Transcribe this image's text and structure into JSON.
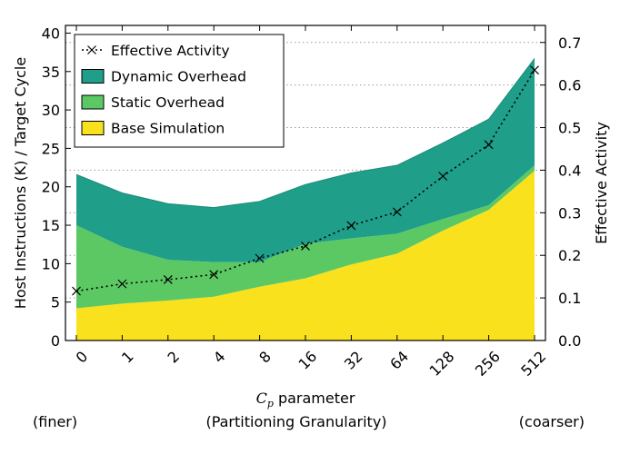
{
  "chart_data": {
    "type": "area",
    "categories": [
      "0",
      "1",
      "2",
      "4",
      "8",
      "16",
      "32",
      "64",
      "128",
      "256",
      "512"
    ],
    "series": [
      {
        "name": "Base Simulation",
        "kind": "stacked-area",
        "color": "#f9e11e",
        "values": [
          4.2,
          4.8,
          5.2,
          5.7,
          7.0,
          8.1,
          9.9,
          11.3,
          14.3,
          17.0,
          22.1
        ]
      },
      {
        "name": "Static Overhead",
        "kind": "stacked-area",
        "color": "#5cc863",
        "values": [
          10.8,
          7.4,
          5.3,
          4.5,
          3.2,
          4.5,
          3.4,
          2.6,
          1.5,
          0.6,
          0.7
        ]
      },
      {
        "name": "Dynamic Overhead",
        "kind": "stacked-area",
        "color": "#1f9e89",
        "values": [
          6.6,
          7.0,
          7.3,
          7.1,
          7.9,
          7.7,
          8.5,
          8.9,
          9.9,
          11.2,
          13.9
        ]
      },
      {
        "name": "Effective Activity",
        "kind": "line",
        "axis": "right",
        "color": "#000000",
        "values": [
          0.116,
          0.133,
          0.143,
          0.155,
          0.193,
          0.222,
          0.27,
          0.302,
          0.386,
          0.46,
          0.635
        ]
      }
    ],
    "legend_order": [
      "Effective Activity",
      "Dynamic Overhead",
      "Static Overhead",
      "Base Simulation"
    ],
    "legend_position": "top-left",
    "ylabel": "Host Instructions (K) / Target Cycle",
    "ylabel_right": "Effective Activity",
    "xlabel_math": "C",
    "xlabel_sub": "p",
    "xlabel_rest": " parameter",
    "ylim": [
      0,
      41
    ],
    "yticks": [
      "0",
      "5",
      "10",
      "15",
      "20",
      "25",
      "30",
      "35",
      "40"
    ],
    "ylim_right": [
      0,
      0.74
    ],
    "yticks_right": [
      "0.0",
      "0.1",
      "0.2",
      "0.3",
      "0.4",
      "0.5",
      "0.6",
      "0.7"
    ],
    "grid": "horizontal-dotted-right-axis",
    "caption": {
      "left": "(finer)",
      "center": "(Partitioning Granularity)",
      "right": "(coarser)"
    }
  }
}
